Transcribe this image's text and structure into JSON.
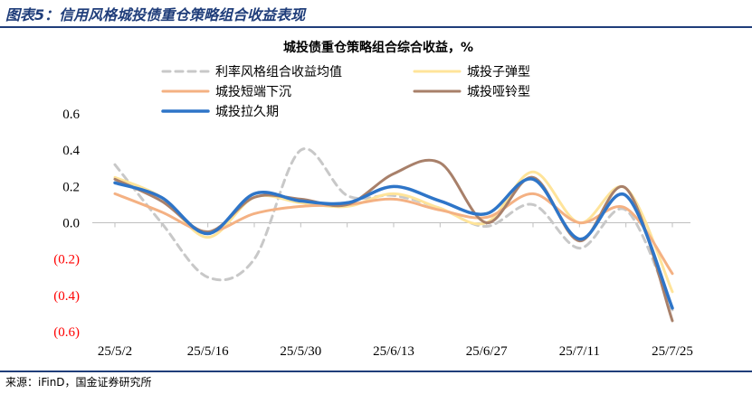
{
  "figure_title": "图表5：信用风格城投债重仓策略组合收益表现",
  "source": "来源：iFinD，国金证券研究所",
  "colors": {
    "frame": "#1f3d7a",
    "negative_tick": "#ff0000",
    "positive_tick": "#000000"
  },
  "chart_data": {
    "type": "line",
    "title": "城投债重仓策略组合综合收益，%",
    "xlabel": "",
    "ylabel": "",
    "ylim": [
      -0.6,
      0.6
    ],
    "yticks": [
      0.6,
      0.4,
      0.2,
      0.0,
      -0.2,
      -0.4,
      -0.6
    ],
    "ytick_labels": [
      "0.6",
      "0.4",
      "0.2",
      "0.0",
      "(0.2)",
      "(0.4)",
      "(0.6)"
    ],
    "xticks": [
      "25/5/2",
      "25/5/16",
      "25/5/30",
      "25/6/13",
      "25/6/27",
      "25/7/11",
      "25/7/25"
    ],
    "x": [
      "25/5/2",
      "25/5/9",
      "25/5/16",
      "25/5/23",
      "25/5/30",
      "25/6/6",
      "25/6/13",
      "25/6/20",
      "25/6/27",
      "25/7/4",
      "25/7/11",
      "25/7/18",
      "25/7/25"
    ],
    "legend_position": "top",
    "grid": false,
    "series": [
      {
        "name": "利率风格组合收益均值",
        "color": "#c8c8c8",
        "dash": true,
        "width": 3,
        "values": [
          0.32,
          0.0,
          -0.3,
          -0.2,
          0.4,
          0.15,
          0.15,
          0.08,
          -0.02,
          0.1,
          -0.14,
          0.07,
          -0.48
        ]
      },
      {
        "name": "城投子弹型",
        "color": "#ffe49a",
        "dash": false,
        "width": 3,
        "values": [
          0.25,
          0.14,
          -0.08,
          0.14,
          0.11,
          0.09,
          0.16,
          0.08,
          0.0,
          0.28,
          0.0,
          0.19,
          -0.38
        ]
      },
      {
        "name": "城投短端下沉",
        "color": "#f4b183",
        "dash": false,
        "width": 3,
        "values": [
          0.16,
          0.06,
          -0.05,
          0.05,
          0.09,
          0.1,
          0.13,
          0.07,
          0.03,
          0.16,
          0.0,
          0.08,
          -0.28
        ]
      },
      {
        "name": "城投哑铃型",
        "color": "#a8806a",
        "dash": false,
        "width": 3,
        "values": [
          0.24,
          0.12,
          -0.05,
          0.14,
          0.13,
          0.1,
          0.27,
          0.33,
          0.0,
          0.25,
          -0.1,
          0.19,
          -0.54
        ]
      },
      {
        "name": "城投拉久期",
        "color": "#2e75c8",
        "dash": false,
        "width": 3.5,
        "values": [
          0.22,
          0.14,
          -0.06,
          0.16,
          0.12,
          0.11,
          0.2,
          0.12,
          0.05,
          0.24,
          -0.09,
          0.15,
          -0.47
        ]
      }
    ]
  }
}
